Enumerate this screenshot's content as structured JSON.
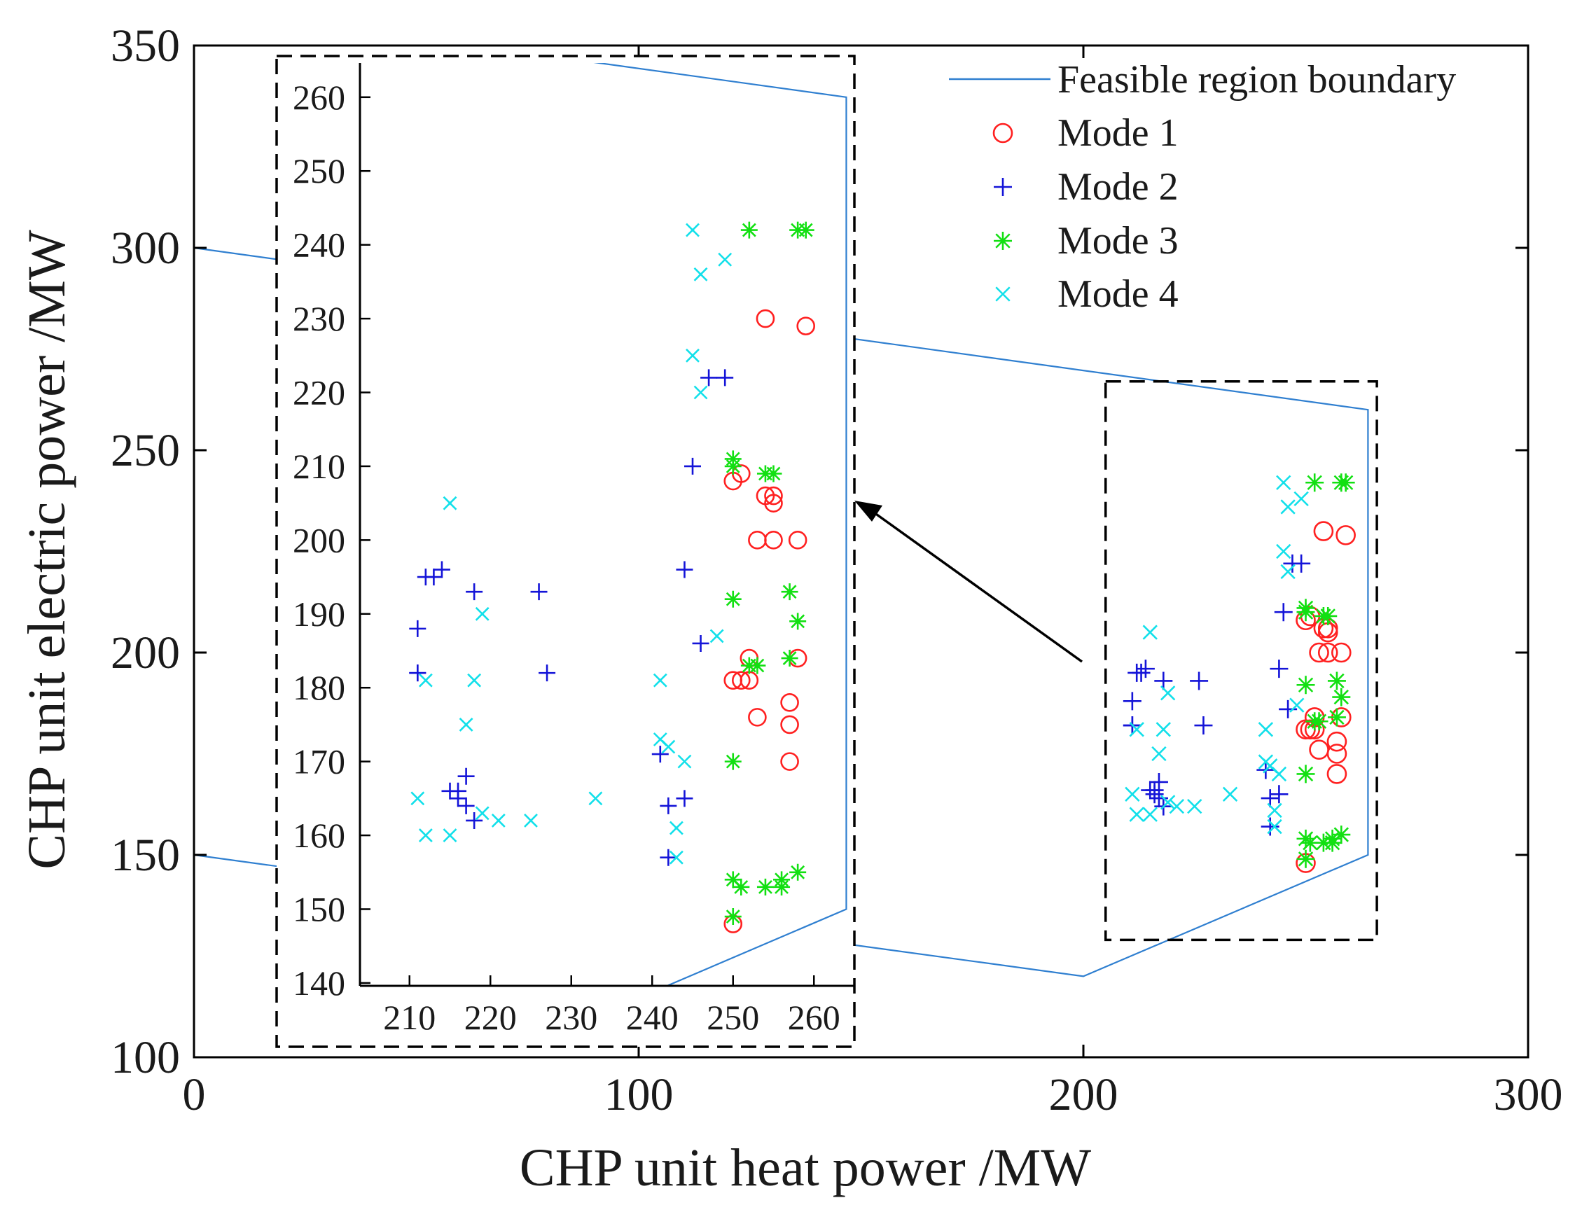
{
  "chart_data": {
    "type": "scatter",
    "title": "",
    "xlabel": "CHP unit heat power /MW",
    "ylabel": "CHP unit electric power /MW",
    "xlim": [
      0,
      300
    ],
    "ylim": [
      100,
      350
    ],
    "xticks": [
      "0",
      "100",
      "200",
      "300"
    ],
    "yticks": [
      "100",
      "150",
      "200",
      "250",
      "300",
      "350"
    ],
    "legend": {
      "placement": "top-right",
      "entries": [
        "Feasible region boundary",
        "Mode 1",
        "Mode 2",
        "Mode 3",
        "Mode 4"
      ]
    },
    "colors": {
      "boundary": "#2f7fd0",
      "mode1": "#ff2020",
      "mode2": "#1414d8",
      "mode3": "#12e012",
      "mode4": "#12e0ea",
      "frame": "#000000",
      "zoom_box": "#000000"
    },
    "feasible_region": {
      "name": "Feasible region boundary",
      "x": [
        0,
        264,
        264,
        200,
        0
      ],
      "y": [
        300,
        260,
        150,
        120,
        150
      ]
    },
    "zoom_region": {
      "xlim": [
        205,
        266
      ],
      "ylim": [
        129,
        267
      ]
    },
    "inset": {
      "xlim": [
        205,
        265
      ],
      "ylim": [
        138,
        267
      ],
      "xticks": [
        "210",
        "220",
        "230",
        "240",
        "250",
        "260"
      ],
      "yticks": [
        "140",
        "150",
        "160",
        "170",
        "180",
        "190",
        "200",
        "210",
        "220",
        "230",
        "240",
        "250",
        "260"
      ]
    },
    "series": [
      {
        "name": "Mode 1",
        "marker": "circle",
        "x": [
          250,
          251,
          250,
          251,
          252,
          252,
          253,
          253,
          254,
          255,
          255,
          255,
          257,
          257,
          257,
          258,
          258,
          259,
          254,
          250
        ],
        "y": [
          208,
          209,
          181,
          181,
          181,
          184,
          176,
          200,
          206,
          206,
          200,
          205,
          175,
          170,
          178,
          200,
          184,
          229,
          230,
          148
        ]
      },
      {
        "name": "Mode 2",
        "marker": "plus",
        "x": [
          211,
          211,
          211,
          212,
          213,
          214,
          215,
          216,
          216,
          217,
          217,
          218,
          218,
          226,
          227,
          241,
          242,
          242,
          244,
          244,
          245,
          246,
          247,
          249
        ],
        "y": [
          188,
          182,
          182,
          195,
          195,
          196,
          166,
          166,
          165,
          164,
          168,
          162,
          193,
          193,
          182,
          171,
          157,
          164,
          165,
          196,
          210,
          186,
          222,
          222
        ]
      },
      {
        "name": "Mode 3",
        "marker": "asterisk",
        "x": [
          250,
          250,
          250,
          250,
          250,
          250,
          251,
          252,
          253,
          254,
          254,
          255,
          256,
          256,
          257,
          257,
          258,
          258,
          258,
          259,
          252
        ],
        "y": [
          149,
          210,
          211,
          192,
          170,
          154,
          153,
          183,
          183,
          153,
          209,
          209,
          153,
          154,
          193,
          184,
          189,
          155,
          242,
          242,
          242
        ]
      },
      {
        "name": "Mode 4",
        "marker": "x",
        "x": [
          211,
          212,
          212,
          215,
          215,
          217,
          218,
          219,
          219,
          221,
          225,
          233,
          241,
          241,
          242,
          243,
          243,
          244,
          245,
          245,
          246,
          246,
          248,
          249
        ],
        "y": [
          165,
          160,
          181,
          160,
          205,
          175,
          181,
          163,
          190,
          162,
          162,
          165,
          181,
          173,
          172,
          157,
          161,
          170,
          242,
          225,
          220,
          236,
          187,
          238
        ]
      }
    ]
  }
}
